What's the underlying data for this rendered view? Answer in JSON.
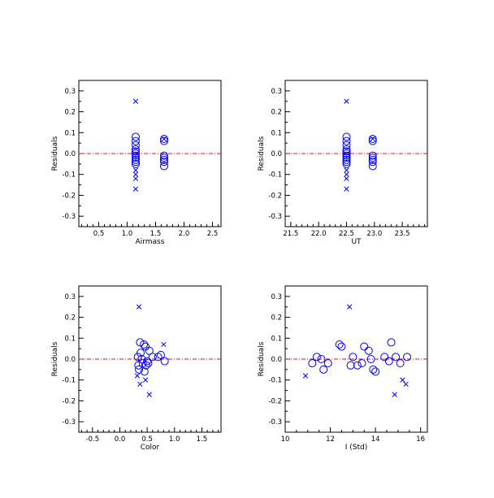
{
  "colors": {
    "marker": "#0000ff",
    "reference_line": "#ff0000",
    "axes": "#000000"
  },
  "chart_data": [
    {
      "type": "scatter",
      "xlabel": "Airmass",
      "ylabel": "Residuals",
      "xlim": [
        0.15,
        2.65
      ],
      "ylim": [
        -0.35,
        0.35
      ],
      "xticks": [
        0.5,
        1.0,
        1.5,
        2.0,
        2.5
      ],
      "xtick_labels": [
        "0.5",
        "1.0",
        "1.5",
        "2.0",
        "2.5"
      ],
      "xminor": 0.1,
      "yticks": [
        -0.3,
        -0.2,
        -0.1,
        0.0,
        0.1,
        0.2,
        0.3
      ],
      "ytick_labels": [
        "-0.3",
        "-0.2",
        "-0.1",
        "0.0",
        "0.1",
        "0.2",
        "0.3"
      ],
      "yminor": 0.05,
      "reference_line_y": 0,
      "series": [
        {
          "marker": "circle",
          "points": [
            [
              1.15,
              0.08
            ],
            [
              1.15,
              0.06
            ],
            [
              1.15,
              0.04
            ],
            [
              1.15,
              0.02
            ],
            [
              1.15,
              0.01
            ],
            [
              1.15,
              0.0
            ],
            [
              1.15,
              -0.01
            ],
            [
              1.15,
              -0.02
            ],
            [
              1.15,
              -0.03
            ],
            [
              1.15,
              -0.04
            ],
            [
              1.15,
              -0.05
            ],
            [
              1.65,
              0.07
            ],
            [
              1.65,
              0.06
            ],
            [
              1.65,
              -0.01
            ],
            [
              1.65,
              -0.02
            ],
            [
              1.65,
              -0.03
            ],
            [
              1.65,
              -0.04
            ],
            [
              1.65,
              -0.06
            ]
          ]
        },
        {
          "marker": "cross",
          "points": [
            [
              1.15,
              0.25
            ],
            [
              1.15,
              -0.08
            ],
            [
              1.15,
              -0.1
            ],
            [
              1.15,
              -0.12
            ],
            [
              1.15,
              -0.17
            ],
            [
              1.65,
              0.07
            ]
          ]
        }
      ]
    },
    {
      "type": "scatter",
      "xlabel": "UT",
      "ylabel": "Residuals",
      "xlim": [
        21.4,
        23.95
      ],
      "ylim": [
        -0.35,
        0.35
      ],
      "xticks": [
        21.5,
        22.0,
        22.5,
        23.0,
        23.5
      ],
      "xtick_labels": [
        "21.5",
        "22.0",
        "22.5",
        "23.0",
        "23.5"
      ],
      "xminor": 0.1,
      "yticks": [
        -0.3,
        -0.2,
        -0.1,
        0.0,
        0.1,
        0.2,
        0.3
      ],
      "ytick_labels": [
        "-0.3",
        "-0.2",
        "-0.1",
        "0.0",
        "0.1",
        "0.2",
        "0.3"
      ],
      "yminor": 0.05,
      "reference_line_y": 0,
      "series": [
        {
          "marker": "circle",
          "points": [
            [
              22.5,
              0.08
            ],
            [
              22.5,
              0.06
            ],
            [
              22.5,
              0.04
            ],
            [
              22.5,
              0.02
            ],
            [
              22.5,
              0.01
            ],
            [
              22.5,
              0.0
            ],
            [
              22.5,
              -0.01
            ],
            [
              22.5,
              -0.02
            ],
            [
              22.5,
              -0.03
            ],
            [
              22.5,
              -0.04
            ],
            [
              22.5,
              -0.05
            ],
            [
              22.97,
              0.07
            ],
            [
              22.97,
              0.06
            ],
            [
              22.97,
              -0.01
            ],
            [
              22.97,
              -0.02
            ],
            [
              22.97,
              -0.03
            ],
            [
              22.97,
              -0.04
            ],
            [
              22.97,
              -0.06
            ]
          ]
        },
        {
          "marker": "cross",
          "points": [
            [
              22.5,
              0.25
            ],
            [
              22.5,
              -0.08
            ],
            [
              22.5,
              -0.1
            ],
            [
              22.5,
              -0.12
            ],
            [
              22.5,
              -0.17
            ],
            [
              22.97,
              0.07
            ]
          ]
        }
      ]
    },
    {
      "type": "scatter",
      "xlabel": "Color",
      "ylabel": "Residuals",
      "xlim": [
        -0.75,
        1.85
      ],
      "ylim": [
        -0.35,
        0.35
      ],
      "xticks": [
        -0.5,
        0.0,
        0.5,
        1.0,
        1.5
      ],
      "xtick_labels": [
        "-0.5",
        "0.0",
        "0.5",
        "1.0",
        "1.5"
      ],
      "xminor": 0.1,
      "yticks": [
        -0.3,
        -0.2,
        -0.1,
        0.0,
        0.1,
        0.2,
        0.3
      ],
      "ytick_labels": [
        "-0.3",
        "-0.2",
        "-0.1",
        "0.0",
        "0.1",
        "0.2",
        "0.3"
      ],
      "yminor": 0.05,
      "reference_line_y": 0,
      "series": [
        {
          "marker": "circle",
          "points": [
            [
              0.33,
              0.01
            ],
            [
              0.34,
              -0.03
            ],
            [
              0.35,
              -0.05
            ],
            [
              0.37,
              0.08
            ],
            [
              0.38,
              0.03
            ],
            [
              0.4,
              0.0
            ],
            [
              0.42,
              -0.02
            ],
            [
              0.44,
              0.07
            ],
            [
              0.45,
              -0.06
            ],
            [
              0.47,
              0.06
            ],
            [
              0.48,
              -0.03
            ],
            [
              0.5,
              -0.01
            ],
            [
              0.52,
              -0.02
            ],
            [
              0.54,
              0.04
            ],
            [
              0.6,
              0.01
            ],
            [
              0.7,
              0.01
            ],
            [
              0.75,
              0.02
            ],
            [
              0.82,
              -0.01
            ]
          ]
        },
        {
          "marker": "cross",
          "points": [
            [
              0.35,
              0.25
            ],
            [
              0.37,
              -0.12
            ],
            [
              0.47,
              -0.1
            ],
            [
              0.54,
              -0.17
            ],
            [
              0.8,
              0.07
            ],
            [
              0.32,
              -0.08
            ]
          ]
        }
      ]
    },
    {
      "type": "scatter",
      "xlabel": "I (Std)",
      "ylabel": "Residuals",
      "xlim": [
        10.0,
        16.3
      ],
      "ylim": [
        -0.35,
        0.35
      ],
      "xticks": [
        10,
        12,
        14,
        16
      ],
      "xtick_labels": [
        "10",
        "12",
        "14",
        "16"
      ],
      "xminor": 0.5,
      "yticks": [
        -0.3,
        -0.2,
        -0.1,
        0.0,
        0.1,
        0.2,
        0.3
      ],
      "ytick_labels": [
        "-0.3",
        "-0.2",
        "-0.1",
        "0.0",
        "0.1",
        "0.2",
        "0.3"
      ],
      "yminor": 0.05,
      "reference_line_y": 0,
      "series": [
        {
          "marker": "circle",
          "points": [
            [
              11.2,
              -0.02
            ],
            [
              11.4,
              0.01
            ],
            [
              11.6,
              0.0
            ],
            [
              11.7,
              -0.05
            ],
            [
              11.9,
              -0.02
            ],
            [
              12.4,
              0.07
            ],
            [
              12.5,
              0.06
            ],
            [
              12.9,
              -0.03
            ],
            [
              13.0,
              0.01
            ],
            [
              13.2,
              -0.03
            ],
            [
              13.4,
              -0.02
            ],
            [
              13.5,
              0.06
            ],
            [
              13.7,
              0.04
            ],
            [
              13.8,
              0.0
            ],
            [
              13.9,
              -0.05
            ],
            [
              14.0,
              -0.06
            ],
            [
              14.4,
              0.01
            ],
            [
              14.6,
              -0.01
            ],
            [
              14.7,
              0.08
            ],
            [
              14.9,
              0.01
            ],
            [
              15.1,
              -0.02
            ],
            [
              15.4,
              0.01
            ]
          ]
        },
        {
          "marker": "cross",
          "points": [
            [
              10.9,
              -0.08
            ],
            [
              12.85,
              0.25
            ],
            [
              14.85,
              -0.17
            ],
            [
              15.2,
              -0.1
            ],
            [
              15.35,
              -0.12
            ]
          ]
        }
      ]
    }
  ]
}
